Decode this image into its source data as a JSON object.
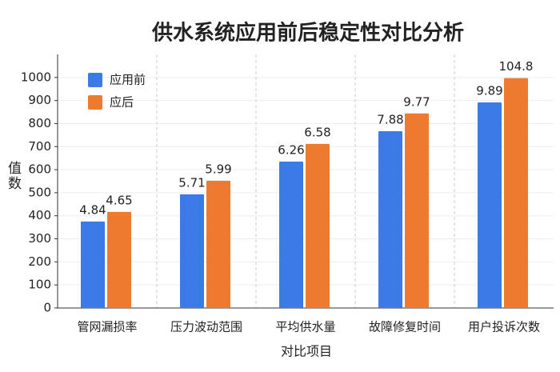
{
  "chart_data": {
    "type": "bar",
    "title": "供水系统应用前后稳定性对比分析",
    "x_label": "对比项目",
    "y_label": "值数",
    "categories": [
      "管网漏损率",
      "压力波动范围",
      "平均供水量",
      "故障修复时间",
      "用户投诉次数"
    ],
    "series": [
      {
        "name": "应用前",
        "color": "#3b7be8",
        "values": [
          375,
          493,
          635,
          767,
          892
        ],
        "labels": [
          "4.84",
          "5.71",
          "6.26",
          "7.88",
          "9.89"
        ]
      },
      {
        "name": "应后",
        "color": "#ee7a30",
        "values": [
          417,
          552,
          712,
          844,
          997
        ],
        "labels": [
          "4.65",
          "5.99",
          "6.58",
          "9.77",
          "104.8"
        ]
      }
    ],
    "ylim": [
      0,
      1100
    ],
    "yticks": [
      0,
      100,
      200,
      300,
      400,
      500,
      600,
      700,
      800,
      900,
      1000
    ],
    "grid": true,
    "legend": "upper left"
  }
}
